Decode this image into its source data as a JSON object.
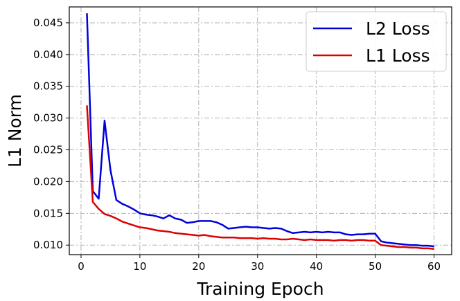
{
  "chart_data": {
    "type": "line",
    "title": "",
    "xlabel": "Training Epoch",
    "ylabel": "L1 Norm",
    "xlim": [
      -2.0,
      63.0
    ],
    "ylim": [
      0.0085,
      0.0475
    ],
    "xticks": [
      0,
      10,
      20,
      30,
      40,
      50,
      60
    ],
    "yticks": [
      0.01,
      0.015,
      0.02,
      0.025,
      0.03,
      0.035,
      0.04,
      0.045
    ],
    "ytick_labels": [
      "0.010",
      "0.015",
      "0.020",
      "0.025",
      "0.030",
      "0.035",
      "0.040",
      "0.045"
    ],
    "grid": true,
    "legend_position": "top-right",
    "x": [
      1,
      2,
      3,
      4,
      5,
      6,
      7,
      8,
      9,
      10,
      11,
      12,
      13,
      14,
      15,
      16,
      17,
      18,
      19,
      20,
      21,
      22,
      23,
      24,
      25,
      26,
      27,
      28,
      29,
      30,
      31,
      32,
      33,
      34,
      35,
      36,
      37,
      38,
      39,
      40,
      41,
      42,
      43,
      44,
      45,
      46,
      47,
      48,
      49,
      50,
      51,
      52,
      53,
      54,
      55,
      56,
      57,
      58,
      59,
      60
    ],
    "series": [
      {
        "name": "L2 Loss",
        "color": "#0000dd",
        "values": [
          0.0465,
          0.0185,
          0.0173,
          0.0296,
          0.0218,
          0.0171,
          0.0165,
          0.0161,
          0.0156,
          0.015,
          0.0148,
          0.0147,
          0.0145,
          0.0142,
          0.0147,
          0.0142,
          0.014,
          0.0135,
          0.0136,
          0.0138,
          0.0138,
          0.0138,
          0.0136,
          0.0132,
          0.0126,
          0.0127,
          0.0128,
          0.0129,
          0.0128,
          0.0128,
          0.0127,
          0.0126,
          0.0127,
          0.0126,
          0.0122,
          0.0119,
          0.012,
          0.0121,
          0.012,
          0.0121,
          0.012,
          0.0121,
          0.012,
          0.012,
          0.0117,
          0.0116,
          0.0117,
          0.0117,
          0.0118,
          0.0118,
          0.0106,
          0.0104,
          0.0103,
          0.0102,
          0.0101,
          0.01,
          0.01,
          0.0099,
          0.0099,
          0.0098
        ]
      },
      {
        "name": "L1 Loss",
        "color": "#dd0000",
        "values": [
          0.032,
          0.0168,
          0.0157,
          0.0149,
          0.0146,
          0.0142,
          0.0137,
          0.0134,
          0.0131,
          0.0128,
          0.0127,
          0.0125,
          0.0123,
          0.0122,
          0.0121,
          0.0119,
          0.0118,
          0.0117,
          0.0116,
          0.0115,
          0.0116,
          0.0114,
          0.0113,
          0.0112,
          0.0112,
          0.0112,
          0.0111,
          0.0111,
          0.0111,
          0.011,
          0.0111,
          0.011,
          0.011,
          0.0109,
          0.0109,
          0.011,
          0.0109,
          0.0108,
          0.0109,
          0.0108,
          0.0108,
          0.0108,
          0.0107,
          0.0108,
          0.0108,
          0.0107,
          0.0108,
          0.0108,
          0.0107,
          0.0107,
          0.01,
          0.0099,
          0.0098,
          0.0097,
          0.0097,
          0.0096,
          0.0096,
          0.0095,
          0.0095,
          0.0094
        ]
      }
    ]
  }
}
